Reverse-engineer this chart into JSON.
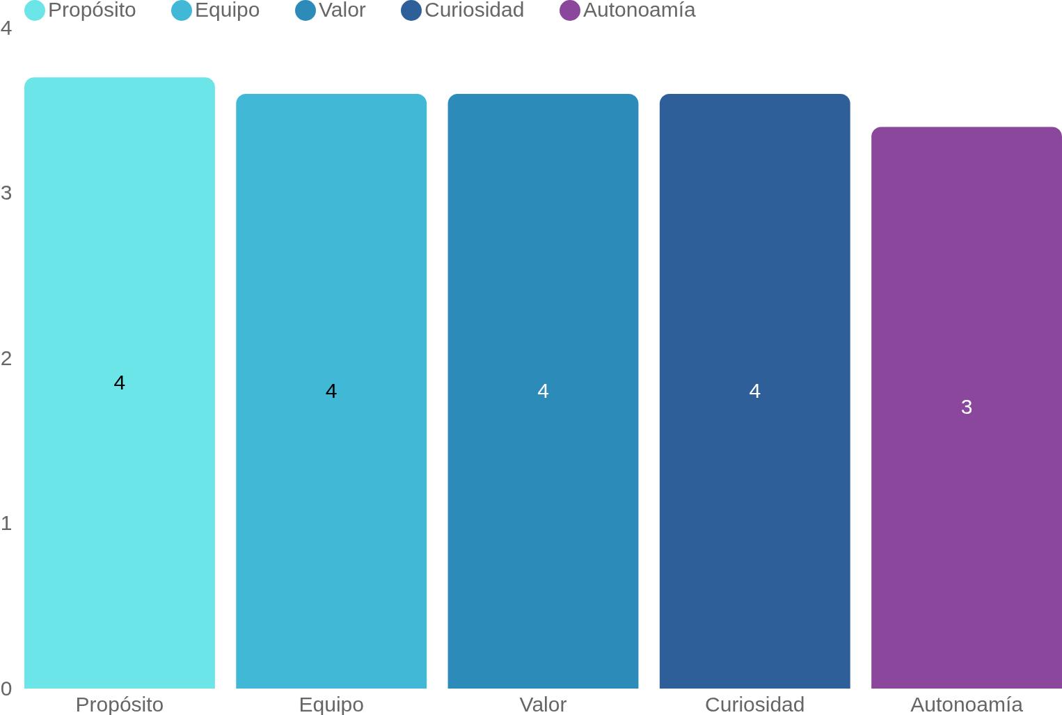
{
  "chart_data": {
    "type": "bar",
    "categories": [
      "Propósito",
      "Equipo",
      "Valor",
      "Curiosidad",
      "Autonoamía"
    ],
    "series": [
      {
        "name": "Propósito",
        "color": "#6be5e8",
        "values": [
          3.7,
          null,
          null,
          null,
          null
        ],
        "value_labels": [
          "4",
          null,
          null,
          null,
          null
        ]
      },
      {
        "name": "Equipo",
        "color": "#41b8d5",
        "values": [
          null,
          3.6,
          null,
          null,
          null
        ],
        "value_labels": [
          null,
          "4",
          null,
          null,
          null
        ]
      },
      {
        "name": "Valor",
        "color": "#2d8bba",
        "values": [
          null,
          null,
          3.6,
          null,
          null
        ],
        "value_labels": [
          null,
          null,
          "4",
          null,
          null
        ]
      },
      {
        "name": "Curiosidad",
        "color": "#2f5f98",
        "values": [
          null,
          null,
          null,
          3.6,
          null
        ],
        "value_labels": [
          null,
          null,
          null,
          "4",
          null
        ]
      },
      {
        "name": "Autonoamía",
        "color": "#8a479b",
        "values": [
          null,
          null,
          null,
          null,
          3.4
        ],
        "value_labels": [
          null,
          null,
          null,
          null,
          "3"
        ]
      }
    ],
    "ylim": [
      0,
      4
    ],
    "yticks": [
      0,
      1,
      2,
      3,
      4
    ],
    "grid": false,
    "legend": "top"
  }
}
